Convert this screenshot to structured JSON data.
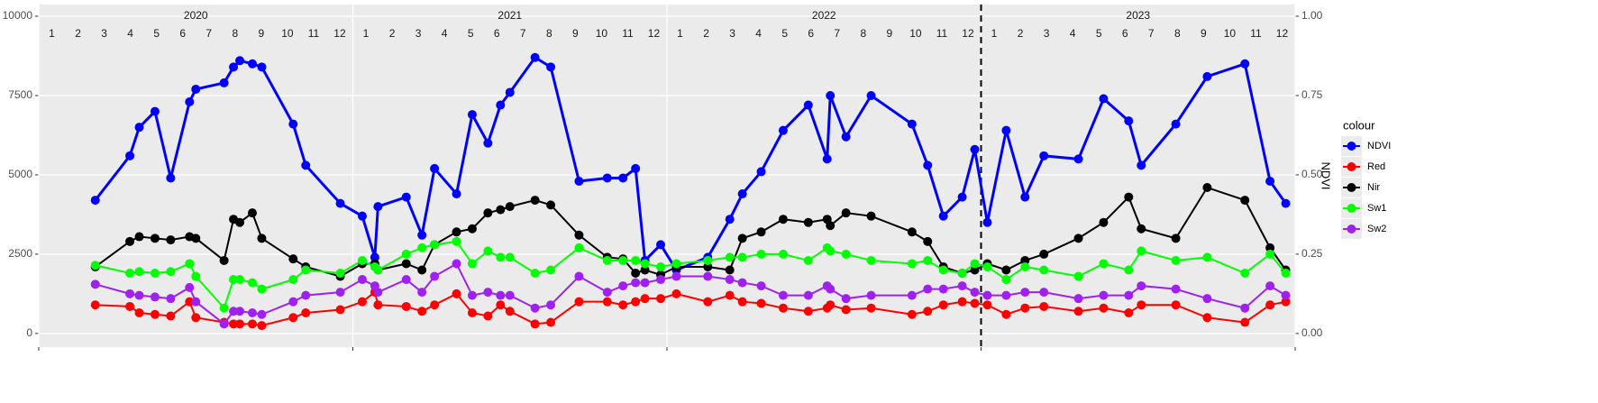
{
  "chart_data": {
    "type": "line",
    "x": [
      2020.18,
      2020.29,
      2020.32,
      2020.37,
      2020.42,
      2020.48,
      2020.5,
      2020.59,
      2020.62,
      2020.64,
      2020.68,
      2020.71,
      2020.81,
      2020.85,
      2020.96,
      2021.03,
      2021.07,
      2021.08,
      2021.17,
      2021.22,
      2021.26,
      2021.33,
      2021.38,
      2021.43,
      2021.47,
      2021.5,
      2021.58,
      2021.63,
      2021.72,
      2021.81,
      2021.86,
      2021.9,
      2021.93,
      2021.98,
      2022.03,
      2022.13,
      2022.2,
      2022.24,
      2022.3,
      2022.37,
      2022.45,
      2022.51,
      2022.52,
      2022.57,
      2022.65,
      2022.78,
      2022.83,
      2022.88,
      2022.94,
      2022.98,
      2023.02,
      2023.08,
      2023.14,
      2023.2,
      2023.31,
      2023.39,
      2023.47,
      2023.51,
      2023.62,
      2023.72,
      2023.84,
      2023.92,
      2023.97
    ],
    "series": [
      {
        "name": "NDVI",
        "color": "#0000ff",
        "axis": "y2",
        "values": [
          0.42,
          0.56,
          0.65,
          0.7,
          0.49,
          0.73,
          0.77,
          0.79,
          0.84,
          0.86,
          0.85,
          0.84,
          0.66,
          0.53,
          0.41,
          0.37,
          0.24,
          0.4,
          0.43,
          0.31,
          0.52,
          0.44,
          0.69,
          0.6,
          0.72,
          0.76,
          0.87,
          0.84,
          0.48,
          0.49,
          0.49,
          0.52,
          0.23,
          0.28,
          0.2,
          0.24,
          0.36,
          0.44,
          0.51,
          0.64,
          0.72,
          0.55,
          0.75,
          0.62,
          0.75,
          0.66,
          0.53,
          0.37,
          0.43,
          0.58,
          0.35,
          0.64,
          0.43,
          0.56,
          0.55,
          0.74,
          0.67,
          0.53,
          0.66,
          0.81,
          0.85,
          0.48,
          0.41
        ]
      },
      {
        "name": "Red",
        "color": "#ff0000",
        "values": [
          900,
          850,
          650,
          600,
          550,
          1000,
          500,
          350,
          300,
          300,
          300,
          250,
          500,
          650,
          750,
          1000,
          1300,
          900,
          850,
          700,
          900,
          1250,
          650,
          550,
          900,
          700,
          300,
          350,
          1000,
          1000,
          900,
          1000,
          1100,
          1100,
          1250,
          1000,
          1200,
          1000,
          950,
          800,
          700,
          800,
          900,
          750,
          800,
          600,
          700,
          900,
          1000,
          950,
          900,
          600,
          800,
          850,
          700,
          800,
          650,
          900,
          900,
          500,
          350,
          900,
          1000
        ]
      },
      {
        "name": "Nir",
        "color": "#000000",
        "values": [
          2100,
          2900,
          3050,
          3000,
          2950,
          3050,
          3000,
          2300,
          3600,
          3500,
          3800,
          3000,
          2350,
          2100,
          1800,
          2200,
          2200,
          2000,
          2200,
          2000,
          2800,
          3200,
          3300,
          3800,
          3900,
          4000,
          4200,
          4050,
          3100,
          2400,
          2350,
          1900,
          2000,
          1850,
          2100,
          2100,
          2000,
          3000,
          3200,
          3600,
          3500,
          3600,
          3400,
          3800,
          3700,
          3200,
          2900,
          2100,
          1900,
          2000,
          2200,
          2000,
          2300,
          2500,
          3000,
          3500,
          4300,
          3300,
          3000,
          4600,
          4200,
          2700,
          2000
        ]
      },
      {
        "name": "Sw1",
        "color": "#00ff00",
        "values": [
          2150,
          1900,
          1950,
          1900,
          1950,
          2200,
          1800,
          800,
          1700,
          1700,
          1600,
          1400,
          1700,
          2000,
          1900,
          2300,
          2100,
          2000,
          2500,
          2700,
          2800,
          2900,
          2200,
          2600,
          2400,
          2400,
          1900,
          2000,
          2700,
          2300,
          2300,
          2300,
          2200,
          2100,
          2200,
          2300,
          2400,
          2400,
          2500,
          2500,
          2300,
          2700,
          2600,
          2500,
          2300,
          2200,
          2300,
          2000,
          1900,
          2200,
          2100,
          1700,
          2100,
          2000,
          1800,
          2200,
          2000,
          2600,
          2300,
          2400,
          1900,
          2500,
          1900
        ]
      },
      {
        "name": "Sw2",
        "color": "#a020f0",
        "values": [
          1550,
          1250,
          1200,
          1150,
          1100,
          1450,
          1000,
          300,
          700,
          700,
          650,
          600,
          1000,
          1200,
          1300,
          1700,
          1500,
          1300,
          1700,
          1300,
          1800,
          2200,
          1200,
          1300,
          1200,
          1200,
          800,
          900,
          1800,
          1300,
          1500,
          1600,
          1600,
          1700,
          1800,
          1800,
          1700,
          1600,
          1500,
          1200,
          1200,
          1500,
          1400,
          1100,
          1200,
          1200,
          1400,
          1400,
          1500,
          1300,
          1200,
          1200,
          1300,
          1300,
          1100,
          1200,
          1200,
          1500,
          1400,
          1100,
          800,
          1500,
          1200
        ]
      }
    ],
    "xlim": [
      2020,
      2024
    ],
    "xticks": [
      2020,
      2021,
      2022,
      2023,
      2024
    ],
    "ylim": [
      -430,
      10370
    ],
    "yticks": [
      0,
      2500,
      5000,
      7500,
      10000
    ],
    "y2lim": [
      -0.043,
      1.037
    ],
    "y2ticks": [
      {
        "value": 0,
        "label": "0.00"
      },
      {
        "value": 0.25,
        "label": "0.25"
      },
      {
        "value": 0.5,
        "label": "0.50"
      },
      {
        "value": 0.75,
        "label": "0.75"
      },
      {
        "value": 1,
        "label": "1.00"
      }
    ],
    "y2_label": "NDVI",
    "legend_title": "colour",
    "years": [
      "2020",
      "2021",
      "2022",
      "2023"
    ],
    "months": [
      "1",
      "2",
      "3",
      "4",
      "5",
      "6",
      "7",
      "8",
      "9",
      "10",
      "11",
      "12"
    ],
    "vline": 2023,
    "grid": true
  }
}
